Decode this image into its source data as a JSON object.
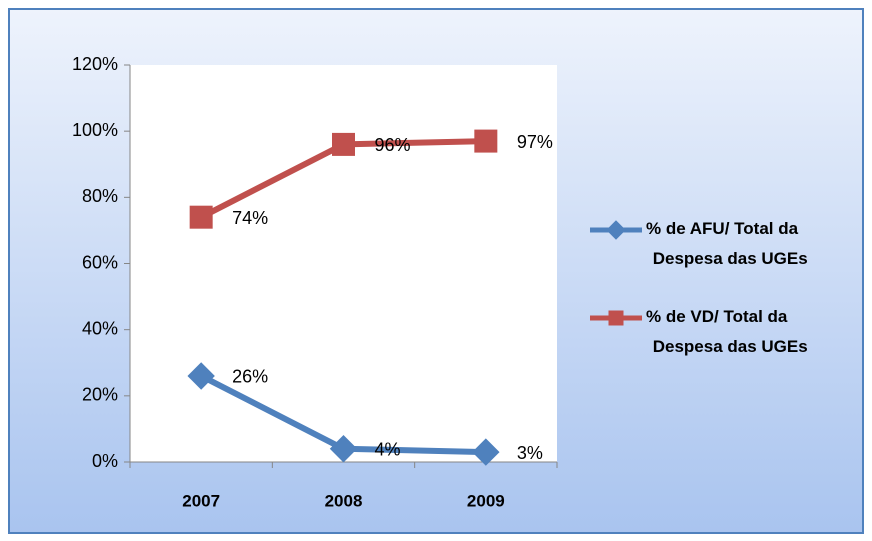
{
  "chart_data": {
    "type": "line",
    "categories": [
      "2007",
      "2008",
      "2009"
    ],
    "series": [
      {
        "name": "% de AFU/ Total da Despesa das UGEs",
        "color": "#4f81bd",
        "marker": "diamond",
        "values": [
          26,
          4,
          3
        ],
        "value_labels": [
          "26%",
          "4%",
          "3%"
        ]
      },
      {
        "name": "% de VD/ Total da Despesa das UGEs",
        "color": "#c0504d",
        "marker": "square",
        "values": [
          74,
          96,
          97
        ],
        "value_labels": [
          "74%",
          "96%",
          "97%"
        ]
      }
    ],
    "ylim": [
      0,
      120
    ],
    "yticks": [
      {
        "value": 0,
        "label": "0%"
      },
      {
        "value": 20,
        "label": "20%"
      },
      {
        "value": 40,
        "label": "40%"
      },
      {
        "value": 60,
        "label": "60%"
      },
      {
        "value": 80,
        "label": "80%"
      },
      {
        "value": 100,
        "label": "100%"
      },
      {
        "value": 120,
        "label": "120%"
      }
    ],
    "grid": false,
    "legend": "right"
  }
}
